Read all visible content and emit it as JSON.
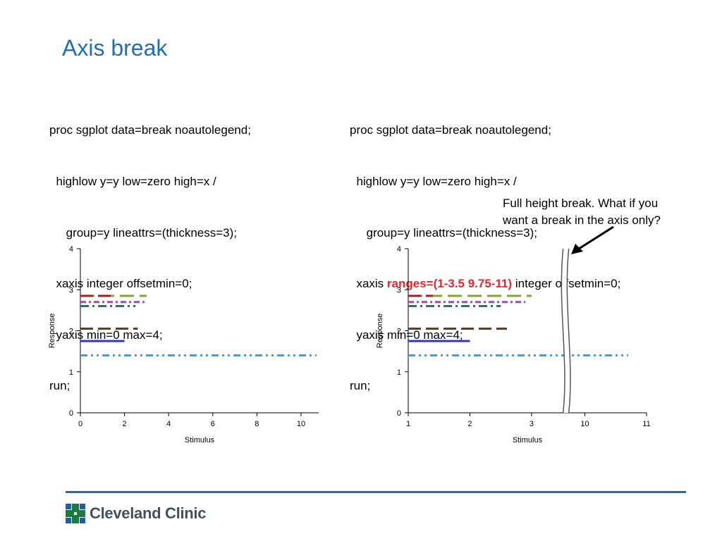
{
  "slide": {
    "title": "Axis break",
    "code_left": [
      "proc sgplot data=break noautolegend;",
      "  highlow y=y low=zero high=x /",
      "     group=y lineattrs=(thickness=3);",
      "  xaxis integer offsetmin=0;",
      "  yaxis min=0 max=4;",
      "run;"
    ],
    "code_right": {
      "line1": "proc sgplot data=break noautolegend;",
      "line2": "  highlow y=y low=zero high=x /",
      "line3": "     group=y lineattrs=(thickness=3);",
      "line4_prefix": "  xaxis ",
      "line4_highlight": "ranges=(1-3.5 9.75-11)",
      "line4_suffix": " integer offsetmin=0;",
      "line5": "  yaxis min=0 max=4;",
      "line6": "run;"
    },
    "note": [
      "Full height break. What if you",
      "want a break in the axis only?"
    ],
    "highlight_color": "#e8242d",
    "title_color": "#1f6fb2"
  },
  "chart_data": [
    {
      "type": "highlow",
      "xlabel": "Stimulus",
      "ylabel": "Response",
      "xticks": [
        "0",
        "2",
        "4",
        "6",
        "8",
        "10"
      ],
      "yticks": [
        "0",
        "1",
        "2",
        "3",
        "4"
      ],
      "xlim": [
        0,
        10.8
      ],
      "ylim": [
        0,
        4
      ],
      "series": [
        {
          "y": 1.4,
          "low": 0,
          "high": 10.7,
          "color": "#3aa0e0",
          "dash": "dashdotdot"
        },
        {
          "y": 1.75,
          "low": 0,
          "high": 2.0,
          "color": "#3333cc",
          "dash": "solid"
        },
        {
          "y": 2.05,
          "low": 0,
          "high": 2.6,
          "color": "#5a3a1a",
          "dash": "longdash"
        },
        {
          "y": 2.6,
          "low": 0,
          "high": 2.5,
          "color": "#1f7a6a",
          "dash": "dashdot"
        },
        {
          "y": 2.7,
          "low": 0,
          "high": 2.9,
          "color": "#b040c0",
          "dash": "dashdotshort"
        },
        {
          "y": 2.85,
          "low": 0,
          "high": 3.0,
          "color": "#8aa030",
          "dash": "longdash2"
        },
        {
          "y": 2.85,
          "low": 0,
          "high": 1.4,
          "color": "#a02020",
          "dash": "longdash"
        }
      ]
    },
    {
      "type": "highlow",
      "xlabel": "Stimulus",
      "ylabel": "Response",
      "xticks": [
        "1",
        "2",
        "3",
        "10",
        "11"
      ],
      "yticks": [
        "0",
        "1",
        "2",
        "3",
        "4"
      ],
      "x_ranges": [
        [
          1,
          3.5
        ],
        [
          9.75,
          11
        ]
      ],
      "ylim": [
        0,
        4
      ],
      "series": [
        {
          "y": 1.4,
          "low": 1,
          "high": 10.7,
          "color": "#3aa0e0",
          "dash": "dashdotdot"
        },
        {
          "y": 1.75,
          "low": 1,
          "high": 2.0,
          "color": "#3333cc",
          "dash": "solid"
        },
        {
          "y": 2.05,
          "low": 1,
          "high": 2.6,
          "color": "#5a3a1a",
          "dash": "longdash"
        },
        {
          "y": 2.6,
          "low": 1,
          "high": 2.5,
          "color": "#1f7a6a",
          "dash": "dashdot"
        },
        {
          "y": 2.7,
          "low": 1,
          "high": 2.9,
          "color": "#b040c0",
          "dash": "dashdotshort"
        },
        {
          "y": 2.85,
          "low": 1,
          "high": 3.0,
          "color": "#8aa030",
          "dash": "longdash2"
        },
        {
          "y": 2.85,
          "low": 1,
          "high": 1.4,
          "color": "#a02020",
          "dash": "longdash"
        }
      ]
    }
  ],
  "footer": {
    "logo_text": "Cleveland Clinic",
    "logo_color": "#1b7a3e",
    "logo_icon": "cleveland-clinic-cross-logo"
  }
}
